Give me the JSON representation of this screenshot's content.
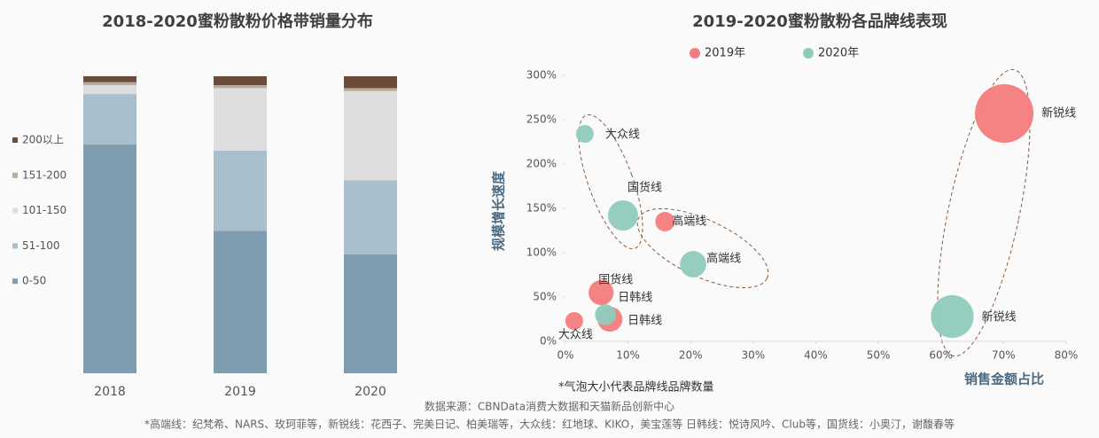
{
  "chart_data": [
    {
      "type": "stacked-bar",
      "title": "2018-2020蜜粉散粉价格带销量分布",
      "categories": [
        "2018",
        "2019",
        "2020"
      ],
      "ylim": [
        0,
        100
      ],
      "series": [
        {
          "name": "0-50",
          "color": "#7f9db1",
          "values": [
            77,
            48,
            40
          ]
        },
        {
          "name": "51-100",
          "color": "#a9bfcc",
          "values": [
            17,
            27,
            25
          ]
        },
        {
          "name": "101-150",
          "color": "#dedede",
          "values": [
            3,
            21,
            30
          ]
        },
        {
          "name": "151-200",
          "color": "#b9aa9c",
          "values": [
            1,
            1,
            1
          ]
        },
        {
          "name": "200以上",
          "color": "#6b4c3a",
          "values": [
            2,
            3,
            4
          ]
        }
      ]
    },
    {
      "type": "bubble",
      "title": "2019-2020蜜粉散粉各品牌线表现",
      "xlabel": "销售金额占比",
      "ylabel": "规模增长速度",
      "note": "*气泡大小代表品牌线品牌数量",
      "xlim": [
        0,
        80
      ],
      "ylim": [
        0,
        300
      ],
      "xticks": [
        {
          "value": 0,
          "label": "0%"
        },
        {
          "value": 10,
          "label": "10%"
        },
        {
          "value": 20,
          "label": "20%"
        },
        {
          "value": 30,
          "label": "30%"
        },
        {
          "value": 40,
          "label": "40%"
        },
        {
          "value": 50,
          "label": "50%"
        },
        {
          "value": 60,
          "label": "60%"
        },
        {
          "value": 70,
          "label": "70%"
        },
        {
          "value": 80,
          "label": "80%"
        }
      ],
      "yticks": [
        {
          "value": 0,
          "label": "0%"
        },
        {
          "value": 50,
          "label": "50%"
        },
        {
          "value": 100,
          "label": "100%"
        },
        {
          "value": 150,
          "label": "150%"
        },
        {
          "value": 200,
          "label": "200%"
        },
        {
          "value": 250,
          "label": "250%"
        },
        {
          "value": 300,
          "label": "300%"
        }
      ],
      "series": [
        {
          "name": "2019年",
          "color": "#f47c7c",
          "point_labels": [
            "新锐线",
            "高端线",
            "国货线",
            "日韩线",
            "大众线"
          ],
          "x": [
            70.1,
            15.9,
            5.7,
            7.1,
            1.4
          ],
          "values": [
            257,
            135,
            55,
            25,
            23
          ],
          "sizes": [
            109,
            12,
            20,
            20,
            10
          ]
        },
        {
          "name": "2020年",
          "color": "#8fcbbb",
          "point_labels": [
            "新锐线",
            "高端线",
            "国货线",
            "日韩线",
            "大众线"
          ],
          "x": [
            61.8,
            20.4,
            9.2,
            6.4,
            3.1
          ],
          "values": [
            28,
            87,
            142,
            30,
            234
          ],
          "sizes": [
            58,
            22,
            29,
            14,
            10
          ]
        }
      ]
    }
  ],
  "footer": {
    "source": "数据来源：CBNData消费大数据和天猫新品创新中心",
    "definitions": "*高端线：纪梵希、NARS、玫珂菲等，新锐线：花西子、完美日记、柏美瑞等，大众线：红地球、KIKO，美宝莲等 日韩线：悦诗风吟、Club等，国货线：小奥汀，谢馥春等"
  }
}
